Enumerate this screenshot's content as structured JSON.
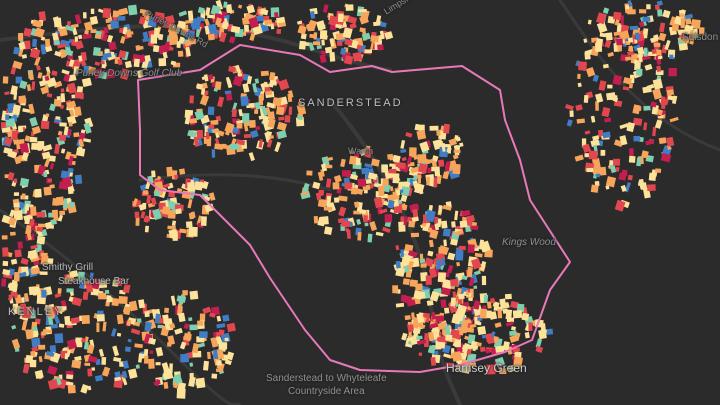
{
  "map": {
    "labels": {
      "purley_downs": "Purley Downs Golf Club",
      "sanderstead": "SANDERSTEAD",
      "warlingham_rd": "Warlin",
      "kings_wood": "Kings Wood",
      "smithy_grill": "Smithy Grill",
      "steakhouse_bar": "Steakhouse Bar",
      "kenley": "KENLEY",
      "hamsey_green": "Hamsey Green",
      "countryside_line1": "Sanderstead to Whyteleafe",
      "countryside_line2": "Countryside Area",
      "selsdon": "Selsdon",
      "purley_downs_road": "Purley Downs Rd",
      "limpsfield_road": "Limpsfield Rd"
    },
    "colors": {
      "background": "#2b2b2c",
      "boundary": "#e879b8",
      "roads": "#3a3a3b",
      "buildings_light": "#fde29a",
      "buildings_orange": "#f6a55a",
      "buildings_red": "#e2474f",
      "buildings_crimson": "#c21e4f",
      "buildings_teal": "#7ecfae",
      "buildings_blue": "#3f7ec4"
    }
  }
}
